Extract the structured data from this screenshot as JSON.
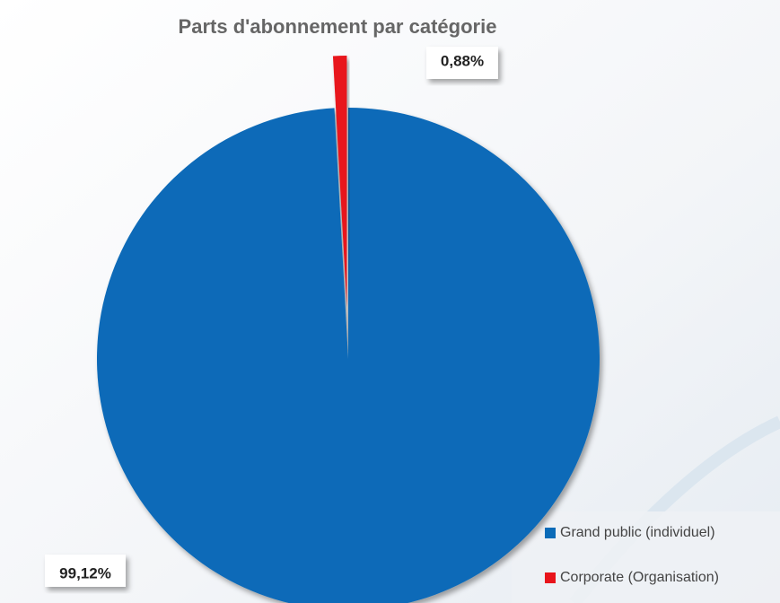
{
  "chart_data": {
    "type": "pie",
    "title": "Parts d'abonnement par catégorie",
    "categories": [
      "Grand public (individuel)",
      "Corporate (Organisation)"
    ],
    "values": [
      99.12,
      0.88
    ],
    "value_labels": [
      "99,12%",
      "0,88%"
    ],
    "colors": [
      "#0b6bb8",
      "#e8141b"
    ]
  }
}
